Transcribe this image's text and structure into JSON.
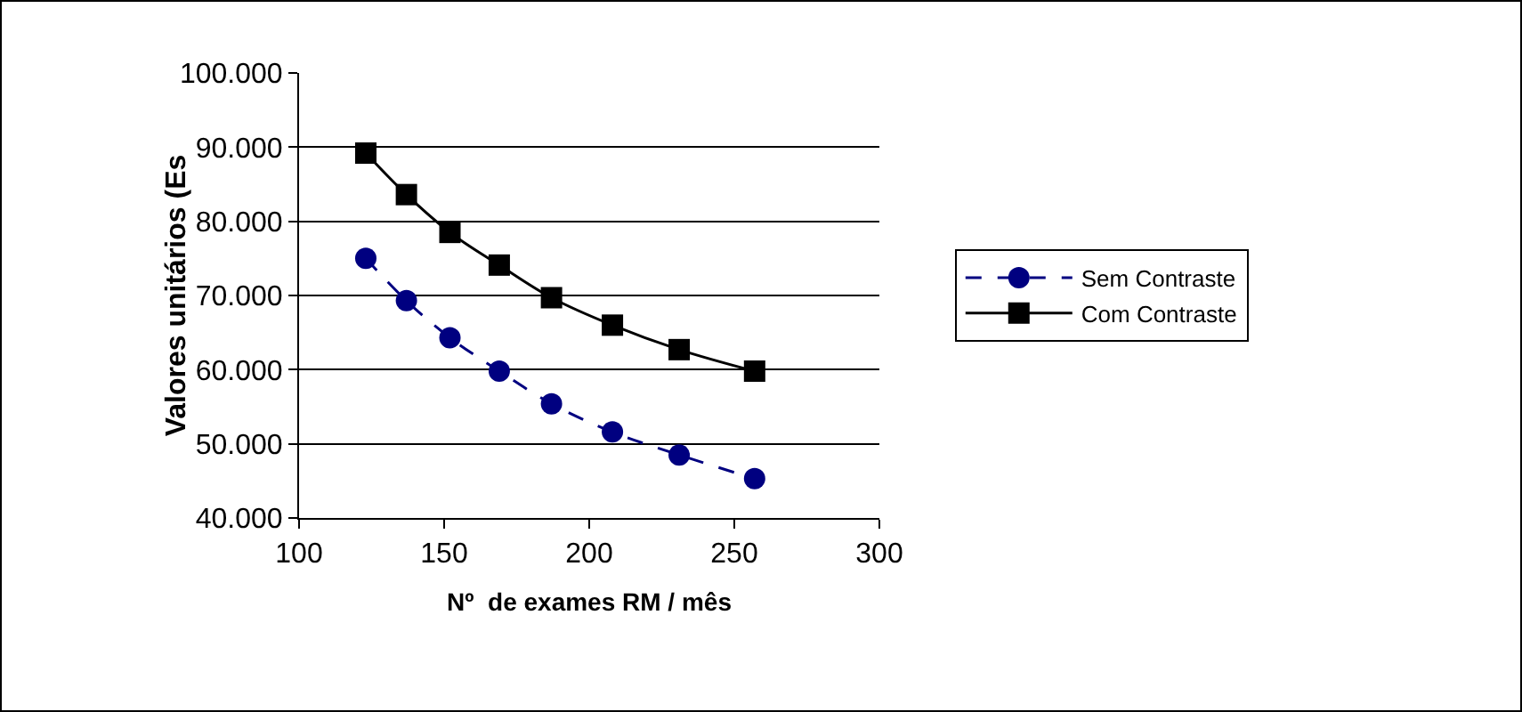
{
  "chart_data": {
    "type": "line",
    "xlabel": "Nº  de exames RM / mês",
    "ylabel": "Valores unitários (Es",
    "x": [
      123,
      137,
      152,
      169,
      187,
      208,
      231,
      257
    ],
    "series": [
      {
        "name": "Sem Contraste",
        "color": "#000080",
        "values": [
          75000,
          69300,
          64300,
          59800,
          55400,
          51600,
          48500,
          45300
        ],
        "marker": "circle",
        "line_style": "dashed"
      },
      {
        "name": "Com Contraste",
        "color": "#000000",
        "values": [
          89200,
          83600,
          78500,
          74100,
          69700,
          66000,
          62700,
          59800
        ],
        "marker": "square",
        "line_style": "solid"
      }
    ],
    "xlim": [
      100,
      300
    ],
    "xticks": [
      100,
      150,
      200,
      250,
      300
    ],
    "ylim": [
      40000,
      100000
    ],
    "yticks": [
      {
        "value": 40000,
        "label": "40.000"
      },
      {
        "value": 50000,
        "label": "50.000"
      },
      {
        "value": 60000,
        "label": "60.000"
      },
      {
        "value": 70000,
        "label": "70.000"
      },
      {
        "value": 80000,
        "label": "80.000"
      },
      {
        "value": 90000,
        "label": "90.000"
      },
      {
        "value": 100000,
        "label": "100.000"
      }
    ],
    "grid": "y",
    "legend": "right"
  }
}
